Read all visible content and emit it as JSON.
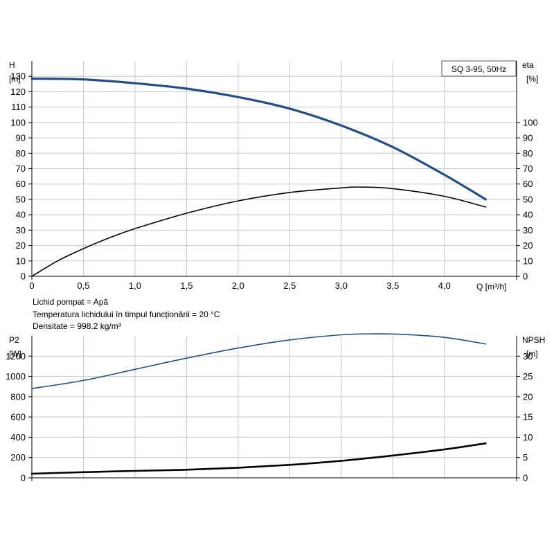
{
  "chart_data": [
    {
      "type": "line",
      "title": "SQ 3-95, 50Hz",
      "xlabel": "Q [m³/h]",
      "ylabel_left": "H [m]",
      "ylabel_right": "eta [%]",
      "xlim": [
        0,
        4.7
      ],
      "ylim_left": [
        0,
        140
      ],
      "ylim_right": [
        0,
        140
      ],
      "x_ticks": [
        "0",
        "0,5",
        "1,0",
        "1,5",
        "2,0",
        "2,5",
        "3,0",
        "3,5",
        "4,0"
      ],
      "y_left_ticks": [
        "0",
        "10",
        "20",
        "30",
        "40",
        "50",
        "60",
        "70",
        "80",
        "90",
        "100",
        "110",
        "120",
        "130"
      ],
      "y_right_ticks": [
        "0",
        "10",
        "20",
        "30",
        "40",
        "50",
        "60",
        "70",
        "80",
        "90",
        "100"
      ],
      "grid": true,
      "series": [
        {
          "color": "#1f4e8f",
          "axis": "left",
          "x": [
            0,
            0.5,
            1.0,
            1.5,
            2.0,
            2.5,
            3.0,
            3.5,
            4.0,
            4.4
          ],
          "values": [
            128.5,
            128,
            125.5,
            122,
            116.5,
            109,
            98,
            84,
            66,
            50
          ]
        },
        {
          "color": "#000000",
          "axis": "right",
          "x": [
            0,
            0.25,
            0.5,
            0.75,
            1.0,
            1.5,
            2.0,
            2.5,
            3.0,
            3.2,
            3.5,
            4.0,
            4.4
          ],
          "values": [
            0,
            10,
            18,
            25,
            31,
            41,
            49,
            54.5,
            57.5,
            58,
            57,
            52,
            45
          ]
        }
      ]
    },
    {
      "type": "line",
      "xlim": [
        0,
        4.7
      ],
      "ylabel_left": "P2 [W]",
      "ylabel_right": "NPSH [m]",
      "ylim_left": [
        0,
        1400
      ],
      "ylim_right": [
        0,
        35
      ],
      "y_left_ticks": [
        "0",
        "200",
        "400",
        "600",
        "800",
        "1000",
        "1200"
      ],
      "y_right_ticks": [
        "0",
        "5",
        "10",
        "15",
        "20",
        "25",
        "30"
      ],
      "grid": true,
      "series": [
        {
          "color": "#1f4e8f",
          "axis": "left",
          "x": [
            0,
            0.5,
            1.0,
            1.5,
            2.0,
            2.5,
            3.0,
            3.3,
            3.6,
            4.0,
            4.4
          ],
          "values": [
            880,
            960,
            1070,
            1180,
            1280,
            1360,
            1410,
            1420,
            1415,
            1385,
            1320
          ]
        },
        {
          "color": "#000000",
          "axis": "right",
          "x": [
            0,
            0.5,
            1.0,
            1.5,
            2.0,
            2.5,
            3.0,
            3.5,
            4.0,
            4.4
          ],
          "values": [
            1,
            1.4,
            1.7,
            2.0,
            2.5,
            3.2,
            4.2,
            5.5,
            7.0,
            8.5
          ]
        }
      ]
    }
  ],
  "fluid_info": {
    "line1": "Lichid pompat = Apă",
    "line2": "Temperatura lichidului în timpul funcționării = 20 °C",
    "line3": "Densitate = 998.2 kg/m³"
  }
}
